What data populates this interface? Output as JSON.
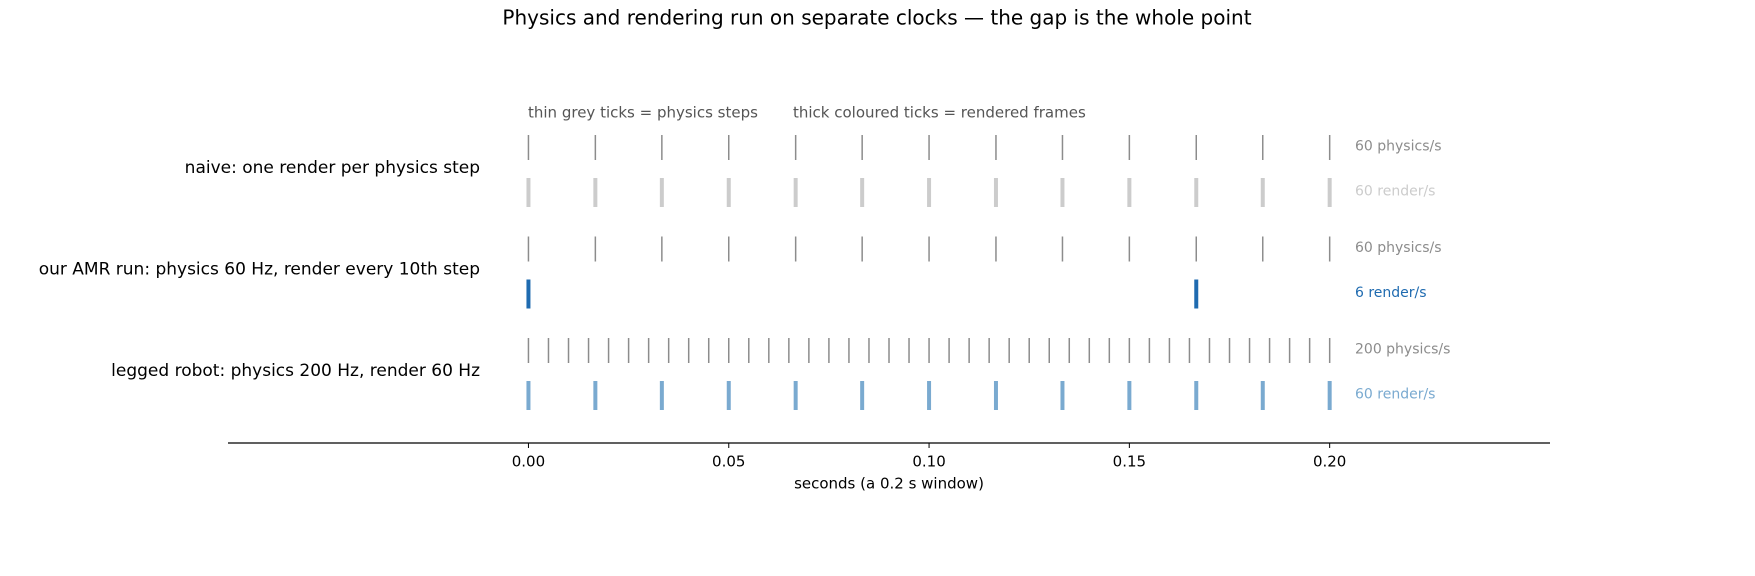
{
  "chart_data": {
    "type": "eventplot",
    "title": "Physics and rendering run on separate clocks — the gap is the whole point",
    "xlabel": "seconds (a 0.2 s window)",
    "annotations": [
      "thin grey ticks = physics steps",
      "thick coloured ticks = rendered frames"
    ],
    "xlim": [
      -0.075,
      0.255
    ],
    "xticks": [
      {
        "value": 0,
        "label": "0.00"
      },
      {
        "value": 0.05,
        "label": "0.05"
      },
      {
        "value": 0.1,
        "label": "0.10"
      },
      {
        "value": 0.15,
        "label": "0.15"
      },
      {
        "value": 0.2,
        "label": "0.20"
      }
    ],
    "rows": [
      {
        "label": "naive: one render per physics step",
        "series": [
          {
            "name": "60 physics/s",
            "color": "#8c8c8c",
            "values": [
              0,
              0.0167,
              0.0333,
              0.05,
              0.0667,
              0.0833,
              0.1,
              0.1167,
              0.1333,
              0.15,
              0.1667,
              0.1833,
              0.2
            ]
          },
          {
            "name": "60 render/s",
            "color": "#cccccc",
            "values": [
              0,
              0.0167,
              0.0333,
              0.05,
              0.0667,
              0.0833,
              0.1,
              0.1167,
              0.1333,
              0.15,
              0.1667,
              0.1833,
              0.2
            ]
          }
        ]
      },
      {
        "label": "our AMR run: physics 60 Hz, render every 10th step",
        "series": [
          {
            "name": "60 physics/s",
            "color": "#8c8c8c",
            "values": [
              0,
              0.0167,
              0.0333,
              0.05,
              0.0667,
              0.0833,
              0.1,
              0.1167,
              0.1333,
              0.15,
              0.1667,
              0.1833,
              0.2
            ]
          },
          {
            "name": "6 render/s",
            "color": "#1f6bb0",
            "values": [
              0,
              0.1667
            ]
          }
        ]
      },
      {
        "label": "legged robot: physics 200 Hz, render 60 Hz",
        "series": [
          {
            "name": "200 physics/s",
            "color": "#8c8c8c",
            "values": [
              0,
              0.005,
              0.01,
              0.015,
              0.02,
              0.025,
              0.03,
              0.035,
              0.04,
              0.045,
              0.05,
              0.055,
              0.06,
              0.065,
              0.07,
              0.075,
              0.08,
              0.085,
              0.09,
              0.095,
              0.1,
              0.105,
              0.11,
              0.115,
              0.12,
              0.125,
              0.13,
              0.135,
              0.14,
              0.145,
              0.15,
              0.155,
              0.16,
              0.165,
              0.17,
              0.175,
              0.18,
              0.185,
              0.19,
              0.195,
              0.2
            ]
          },
          {
            "name": "60 render/s",
            "color": "#7aaad0",
            "values": [
              0,
              0.0167,
              0.0333,
              0.05,
              0.0667,
              0.0833,
              0.1,
              0.1167,
              0.1333,
              0.15,
              0.1667,
              0.1833,
              0.2
            ]
          }
        ]
      }
    ]
  }
}
